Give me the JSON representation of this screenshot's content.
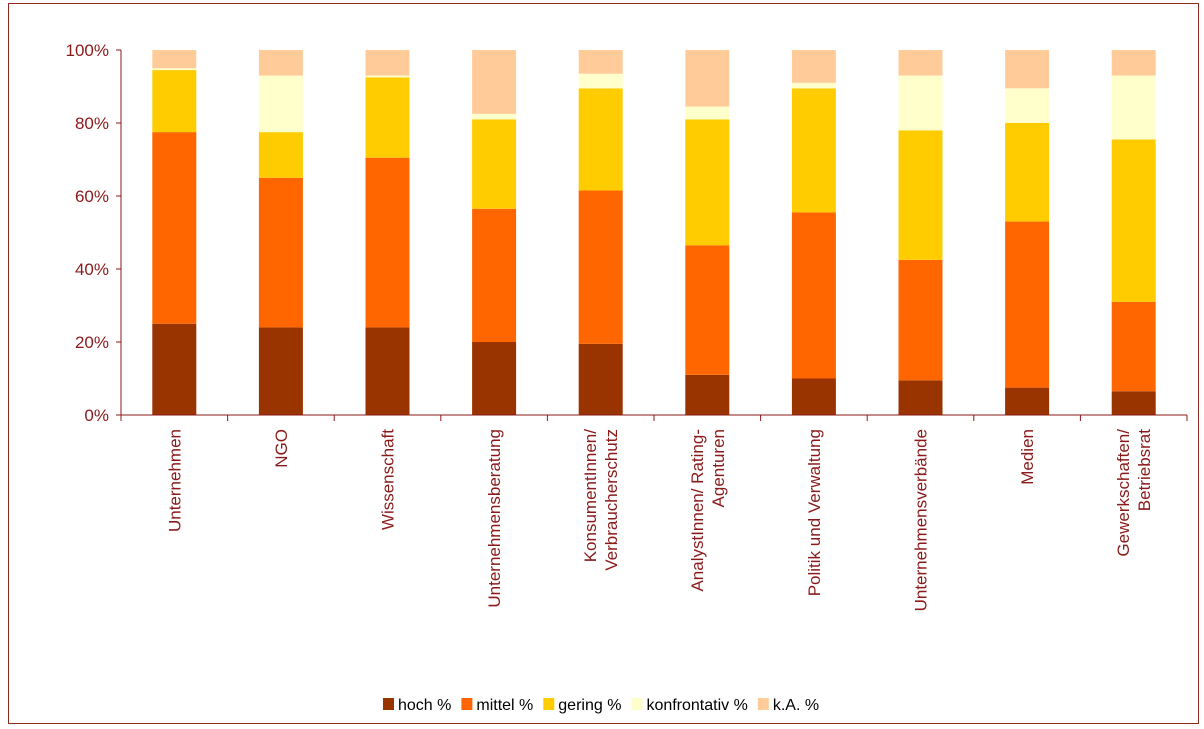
{
  "chart_data": {
    "type": "bar",
    "stacked": true,
    "title": "",
    "xlabel": "",
    "ylabel": "",
    "ylim": [
      0,
      100
    ],
    "yticks": [
      "0%",
      "20%",
      "40%",
      "60%",
      "80%",
      "100%"
    ],
    "ytick_values": [
      0,
      20,
      40,
      60,
      80,
      100
    ],
    "grid": false,
    "legend_position": "bottom",
    "categories": [
      [
        "Unternehmen"
      ],
      [
        "NGO"
      ],
      [
        "Wissenschaft"
      ],
      [
        "Unternehmensberatung"
      ],
      [
        "KonsumentInnen/",
        "Verbraucherschutz"
      ],
      [
        "AnalystInnen/ Rating-",
        "Agenturen"
      ],
      [
        "Politik und Verwaltung"
      ],
      [
        "Unternehmensverbände"
      ],
      [
        "Medien"
      ],
      [
        "Gewerkschaften/",
        "Betriebsrat"
      ]
    ],
    "series": [
      {
        "name": "hoch %",
        "color": "#993300",
        "values": [
          25,
          24,
          24,
          20,
          19.5,
          11,
          10,
          9.5,
          7.5,
          6.5
        ]
      },
      {
        "name": "mittel %",
        "color": "#ff6600",
        "values": [
          52.5,
          41,
          46.5,
          36.5,
          42,
          35.5,
          45.5,
          33,
          45.5,
          24.5
        ]
      },
      {
        "name": "gering %",
        "color": "#ffcc00",
        "values": [
          17,
          12.5,
          22,
          24.5,
          28,
          34.5,
          34,
          35.5,
          27,
          44.5
        ]
      },
      {
        "name": "konfrontativ %",
        "color": "#ffffcc",
        "values": [
          0.5,
          15.5,
          0.5,
          1.5,
          4,
          3.5,
          1.5,
          15,
          9.5,
          17.5
        ]
      },
      {
        "name": "k.A. %",
        "color": "#ffcc99",
        "values": [
          5,
          7,
          7,
          17.5,
          6.5,
          15.5,
          9,
          7,
          10.5,
          7
        ]
      }
    ]
  }
}
